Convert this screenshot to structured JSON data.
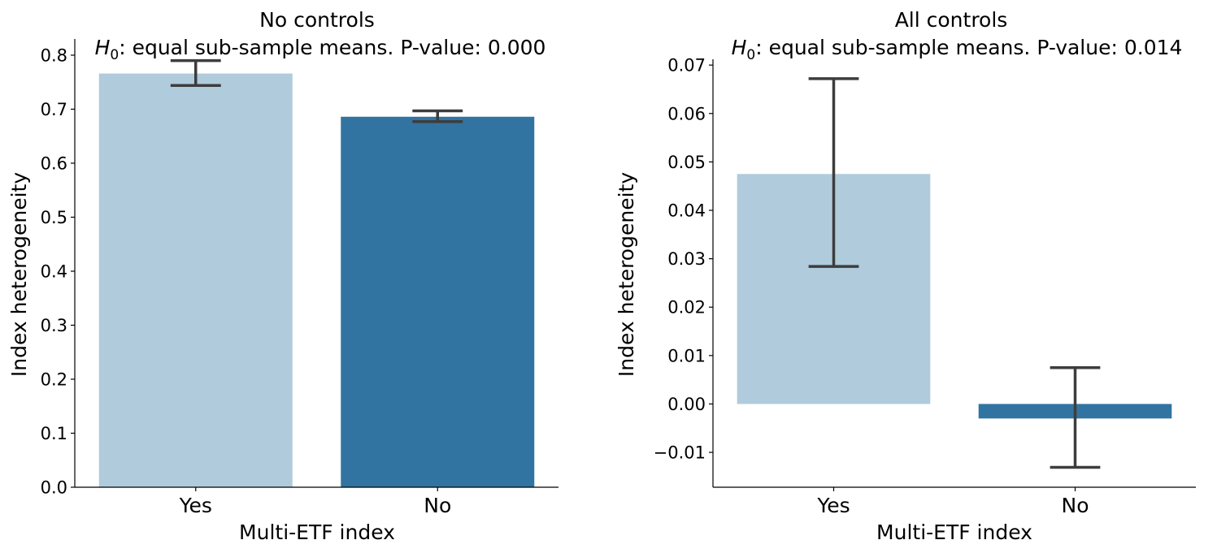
{
  "chart_data": [
    {
      "type": "bar",
      "title": "No controls",
      "subtitle_math": "H",
      "subtitle_math_sub": "0",
      "subtitle": ": equal sub-sample means. P-value: 0.000",
      "categories": [
        "Yes",
        "No"
      ],
      "values": [
        0.766,
        0.686
      ],
      "error_low": [
        0.744,
        0.677
      ],
      "error_high": [
        0.79,
        0.697
      ],
      "colors": [
        "#afcbdc",
        "#3274a1"
      ],
      "xlabel": "Multi-ETF index",
      "ylabel": "Index heterogeneity",
      "ylim": [
        0,
        0.83
      ],
      "yticks": [
        0.0,
        0.1,
        0.2,
        0.3,
        0.4,
        0.5,
        0.6,
        0.7,
        0.8
      ],
      "ytick_labels": [
        "0.0",
        "0.1",
        "0.2",
        "0.3",
        "0.4",
        "0.5",
        "0.6",
        "0.7",
        "0.8"
      ],
      "grid": false
    },
    {
      "type": "bar",
      "title": "All controls",
      "subtitle_math": "H",
      "subtitle_math_sub": "0",
      "subtitle": ": equal sub-sample means. P-value: 0.014",
      "categories": [
        "Yes",
        "No"
      ],
      "values": [
        0.0475,
        -0.003
      ],
      "error_low": [
        0.0284,
        -0.0131
      ],
      "error_high": [
        0.0672,
        0.0075
      ],
      "colors": [
        "#afcbdc",
        "#3274a1"
      ],
      "xlabel": "Multi-ETF index",
      "ylabel": "Index heterogeneity",
      "ylim": [
        -0.0172,
        0.0712
      ],
      "yticks": [
        -0.01,
        0.0,
        0.01,
        0.02,
        0.03,
        0.04,
        0.05,
        0.06,
        0.07
      ],
      "ytick_labels": [
        "−0.01",
        "0.00",
        "0.01",
        "0.02",
        "0.03",
        "0.04",
        "0.05",
        "0.06",
        "0.07"
      ],
      "grid": false
    }
  ]
}
